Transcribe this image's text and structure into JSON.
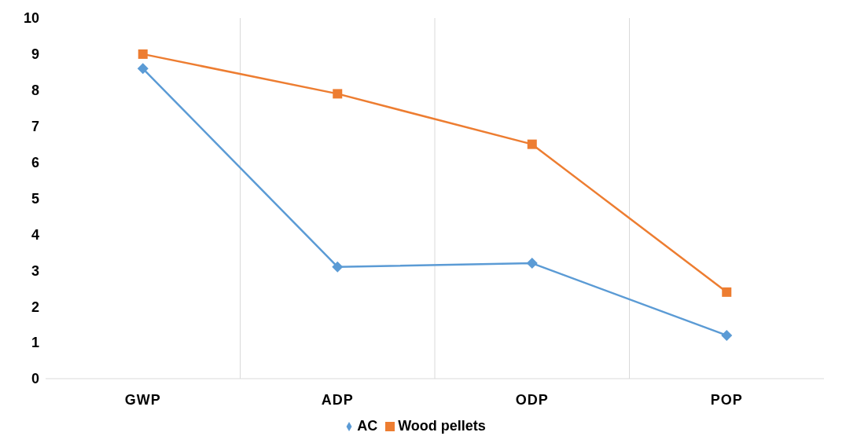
{
  "chart_data": {
    "type": "line",
    "categories": [
      "GWP",
      "ADP",
      "ODP",
      "POP"
    ],
    "series": [
      {
        "name": "AC",
        "color": "#5b9bd5",
        "marker": "diamond",
        "values": [
          8.6,
          3.1,
          3.2,
          1.2
        ]
      },
      {
        "name": "Wood pellets",
        "color": "#ed7d31",
        "marker": "square",
        "values": [
          9.0,
          7.9,
          6.5,
          2.4
        ]
      }
    ],
    "ylim": [
      0,
      10
    ],
    "yticks": [
      0,
      1,
      2,
      3,
      4,
      5,
      6,
      7,
      8,
      9,
      10
    ],
    "grid": "x",
    "legend": "bottom",
    "line_style": "solid"
  }
}
